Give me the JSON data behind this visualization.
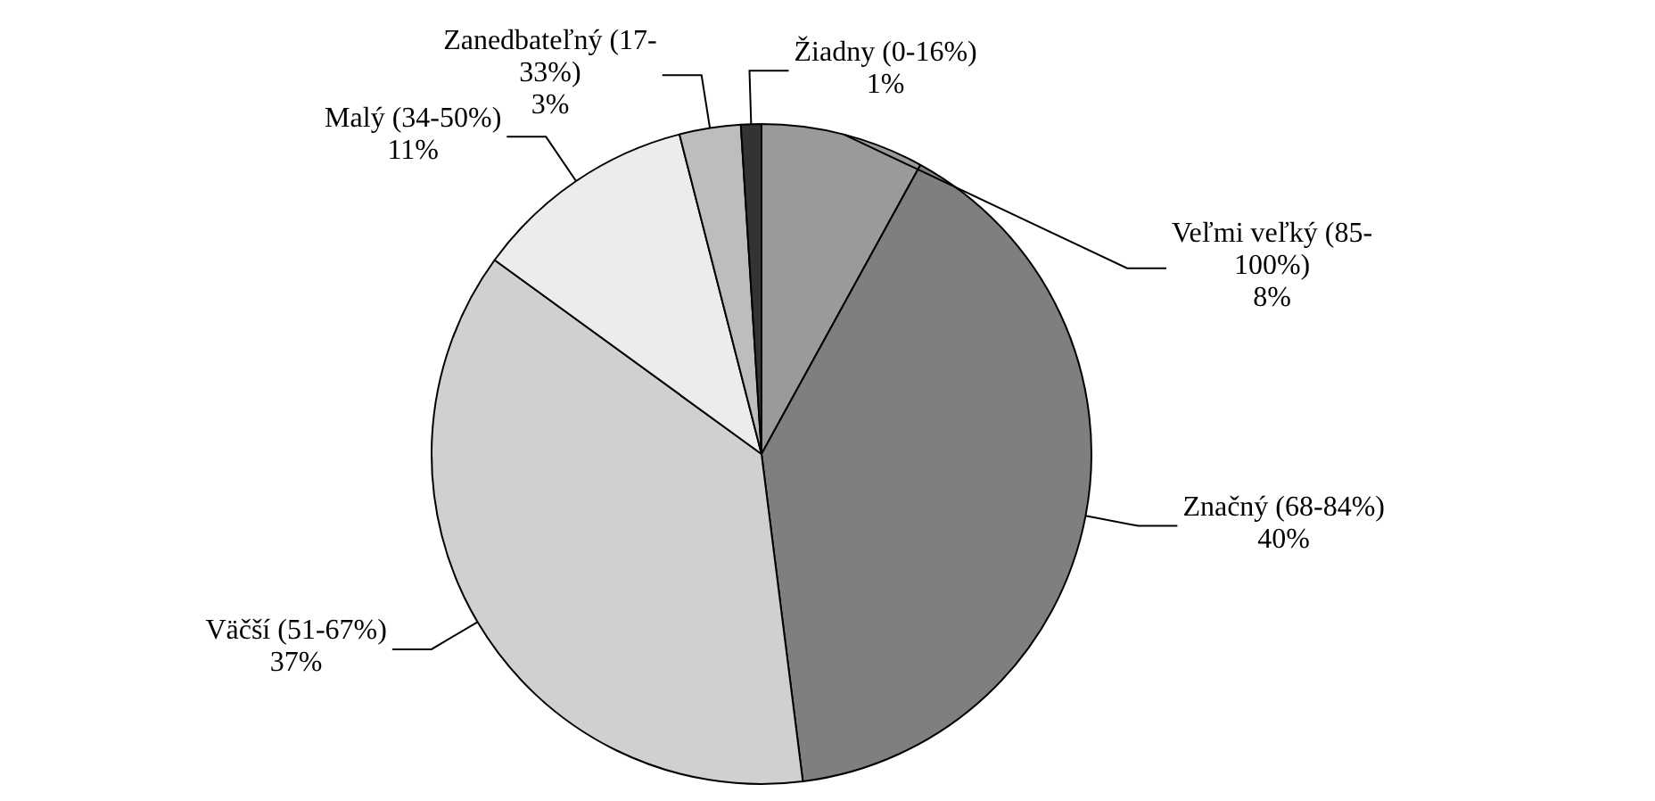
{
  "chart_data": {
    "type": "pie",
    "categories": [
      "Veľmi veľký (85-100%)",
      "Značný (68-84%)",
      "Väčší (51-67%)",
      "Malý (34-50%)",
      "Zanedbateľný (17-33%)",
      "Žiadny (0-16%)"
    ],
    "values": [
      8,
      40,
      37,
      11,
      3,
      1
    ],
    "colors": [
      "#9a9a9a",
      "#7f7f7f",
      "#d0d0d0",
      "#ececec",
      "#bdbdbd",
      "#333333"
    ],
    "value_labels": [
      "8%",
      "40%",
      "37%",
      "11%",
      "3%",
      "1%"
    ],
    "legend": false
  }
}
